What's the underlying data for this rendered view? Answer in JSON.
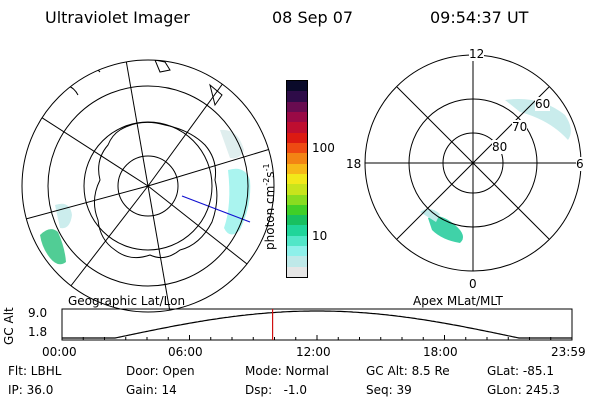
{
  "header": {
    "instrument": "Ultraviolet Imager",
    "date": "08 Sep 07",
    "time": "09:54:37 UT"
  },
  "left_map": {
    "label": "Geographic Lat/Lon"
  },
  "right_map": {
    "label": "Apex MLat/MLT",
    "mlt_labels": {
      "top": "12",
      "left": "18",
      "right": "6",
      "bottom": "0"
    },
    "mlat_labels": [
      "60",
      "70",
      "80"
    ]
  },
  "colorbar": {
    "unit_label": "photon cm",
    "unit_sup1": "-2",
    "unit_mid": "s",
    "unit_sup2": "-1",
    "tick_labels": [
      "100",
      "10"
    ],
    "colors": [
      "#e6e6e6",
      "#bfe9e9",
      "#8ef0ea",
      "#52e6c8",
      "#20d59a",
      "#18c060",
      "#40cf28",
      "#88dc20",
      "#c8e41c",
      "#f2e81a",
      "#f7b818",
      "#f38414",
      "#ee4a12",
      "#dc1a12",
      "#bf0e30",
      "#9a0a46",
      "#680c50",
      "#2e0c48",
      "#0a0a2a"
    ]
  },
  "altitude_plot": {
    "ylabel": "GC Alt",
    "ymax_label": "9.0",
    "ymin_label": "1.8",
    "x_tick_labels": [
      "00:00",
      "06:00",
      "12:00",
      "18:00",
      "23:59"
    ],
    "current_marker_hour": 9.91,
    "marker_color": "#d01010"
  },
  "status": {
    "filter": "Flt: LBHL",
    "ip": "IP: 36.0",
    "door": "Door: Open",
    "gain": "Gain: 14",
    "mode": "Mode: Normal",
    "dsp": "Dsp:   -1.0",
    "gc_alt": "GC Alt: 8.5 Re",
    "seq": "Seq: 39",
    "glat": "GLat: -85.1",
    "glon": "GLon: 245.3"
  }
}
